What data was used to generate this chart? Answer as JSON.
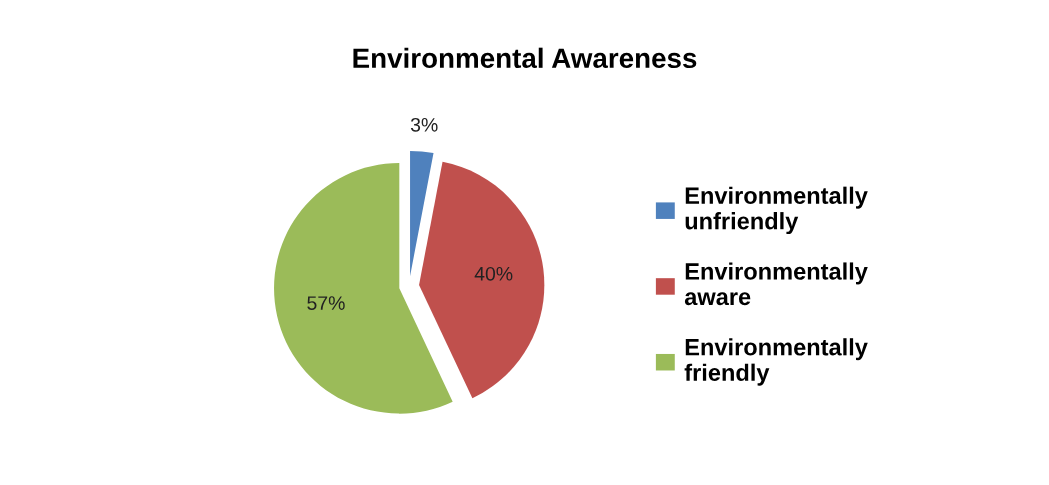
{
  "chart_data": {
    "type": "pie",
    "title": "Environmental Awareness",
    "categories": [
      "Environmentally unfriendly",
      "Environmentally aware",
      "Environmentally friendly"
    ],
    "values": [
      3,
      40,
      57
    ],
    "colors": [
      "#4f81bd",
      "#c0504d",
      "#9bbb59"
    ],
    "value_labels": [
      "3%",
      "40%",
      "57%"
    ],
    "legend": "right"
  }
}
